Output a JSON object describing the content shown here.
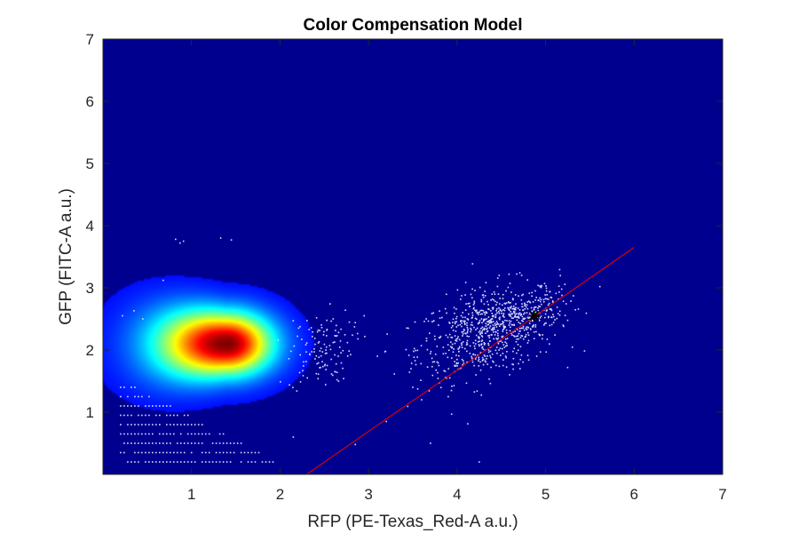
{
  "chart_data": {
    "type": "heatmap",
    "title": "Color Compensation Model",
    "xlabel": "RFP (PE-Texas_Red-A a.u.)",
    "ylabel": "GFP (FITC-A a.u.)",
    "xlim": [
      0,
      7
    ],
    "ylim": [
      0,
      7
    ],
    "xticks": [
      1,
      2,
      3,
      4,
      5,
      6,
      7
    ],
    "yticks": [
      1,
      2,
      3,
      4,
      5,
      6,
      7
    ],
    "grid": false,
    "legend": "none",
    "colormap": "jet",
    "background_color": "#00008f",
    "density": {
      "peak": {
        "x": 1.4,
        "y": 2.1
      },
      "spread": {
        "x_left": 0.55,
        "x_right": 0.35,
        "y": 0.35
      }
    },
    "scatter_color": "#d8dcff",
    "scatter_clusters": [
      {
        "cx": 4.35,
        "cy": 2.3,
        "sx": 0.4,
        "sy": 0.35,
        "n": 700
      },
      {
        "cx": 2.45,
        "cy": 2.0,
        "sx": 0.18,
        "sy": 0.3,
        "n": 120
      },
      {
        "cx": 4.8,
        "cy": 2.6,
        "sx": 0.25,
        "sy": 0.15,
        "n": 150
      }
    ],
    "scatter_points": [
      [
        0.82,
        3.78
      ],
      [
        0.87,
        3.72
      ],
      [
        0.91,
        3.75
      ],
      [
        1.33,
        3.8
      ],
      [
        1.45,
        3.77
      ],
      [
        0.68,
        3.12
      ],
      [
        0.35,
        2.63
      ],
      [
        0.22,
        2.55
      ],
      [
        0.45,
        2.5
      ],
      [
        2.6,
        2.5
      ],
      [
        2.95,
        2.55
      ],
      [
        3.45,
        2.35
      ],
      [
        3.1,
        1.9
      ],
      [
        3.5,
        1.4
      ],
      [
        3.6,
        1.2
      ],
      [
        2.85,
        0.48
      ],
      [
        3.7,
        0.5
      ],
      [
        3.2,
        0.85
      ],
      [
        4.25,
        0.2
      ],
      [
        2.15,
        0.6
      ],
      [
        3.9,
        1.25
      ],
      [
        4.9,
        1.9
      ]
    ],
    "low_grid_points": {
      "x_start": 0.2,
      "x_end": 2.0,
      "y_values": [
        0.2,
        0.35,
        0.5,
        0.65,
        0.8,
        0.95,
        1.1,
        1.25,
        1.4
      ]
    },
    "fit_line": {
      "color": "#e00000",
      "x": [
        2.3,
        6.0
      ],
      "y": [
        0.0,
        3.65
      ]
    },
    "marker": {
      "x": 4.87,
      "y": 2.55,
      "color": "#000000"
    }
  }
}
